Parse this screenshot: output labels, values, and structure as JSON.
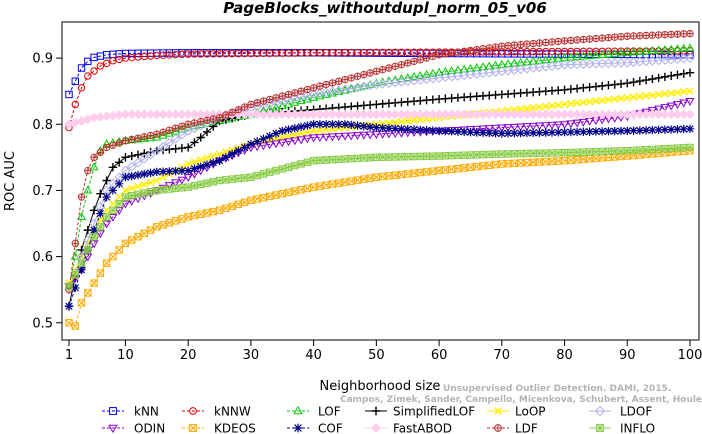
{
  "chart_data": {
    "type": "line",
    "title": "PageBlocks_withoutdupl_norm_05_v06",
    "xlabel": "Neighborhood size",
    "ylabel": "ROC AUC",
    "xlim": [
      1,
      100
    ],
    "ylim": [
      0.48,
      0.95
    ],
    "xticks": [
      1,
      10,
      20,
      30,
      40,
      50,
      60,
      70,
      80,
      90,
      100
    ],
    "yticks": [
      0.5,
      0.6,
      0.7,
      0.8,
      0.9
    ],
    "grid": false,
    "legend_position": "bottom",
    "series": [
      {
        "name": "kNN",
        "color": "#0000ee",
        "marker": "square",
        "dashed": true,
        "points": [
          [
            1,
            0.845
          ],
          [
            2,
            0.865
          ],
          [
            3,
            0.885
          ],
          [
            4,
            0.895
          ],
          [
            5,
            0.901
          ],
          [
            7,
            0.905
          ],
          [
            10,
            0.907
          ],
          [
            20,
            0.908
          ],
          [
            40,
            0.908
          ],
          [
            60,
            0.907
          ],
          [
            80,
            0.906
          ],
          [
            100,
            0.905
          ]
        ]
      },
      {
        "name": "kNNW",
        "color": "#dd0000",
        "marker": "circle",
        "dashed": true,
        "points": [
          [
            1,
            0.795
          ],
          [
            2,
            0.83
          ],
          [
            3,
            0.855
          ],
          [
            4,
            0.873
          ],
          [
            6,
            0.888
          ],
          [
            8,
            0.896
          ],
          [
            10,
            0.9
          ],
          [
            15,
            0.904
          ],
          [
            20,
            0.906
          ],
          [
            40,
            0.908
          ],
          [
            60,
            0.909
          ],
          [
            80,
            0.91
          ],
          [
            100,
            0.911
          ]
        ]
      },
      {
        "name": "LOF",
        "color": "#00cc00",
        "marker": "triangle",
        "dashed": true,
        "points": [
          [
            1,
            0.555
          ],
          [
            2,
            0.6
          ],
          [
            3,
            0.66
          ],
          [
            4,
            0.7
          ],
          [
            5,
            0.735
          ],
          [
            6,
            0.76
          ],
          [
            7,
            0.77
          ],
          [
            10,
            0.775
          ],
          [
            15,
            0.78
          ],
          [
            20,
            0.795
          ],
          [
            25,
            0.805
          ],
          [
            30,
            0.815
          ],
          [
            40,
            0.84
          ],
          [
            50,
            0.862
          ],
          [
            60,
            0.878
          ],
          [
            70,
            0.89
          ],
          [
            80,
            0.9
          ],
          [
            90,
            0.908
          ],
          [
            100,
            0.915
          ]
        ]
      },
      {
        "name": "SimplifiedLOF",
        "color": "#000000",
        "marker": "plus",
        "dashed": false,
        "points": [
          [
            1,
            0.525
          ],
          [
            2,
            0.57
          ],
          [
            3,
            0.61
          ],
          [
            4,
            0.64
          ],
          [
            5,
            0.67
          ],
          [
            6,
            0.695
          ],
          [
            7,
            0.715
          ],
          [
            8,
            0.735
          ],
          [
            10,
            0.75
          ],
          [
            15,
            0.76
          ],
          [
            20,
            0.765
          ],
          [
            22,
            0.78
          ],
          [
            25,
            0.805
          ],
          [
            30,
            0.815
          ],
          [
            40,
            0.822
          ],
          [
            50,
            0.83
          ],
          [
            60,
            0.838
          ],
          [
            70,
            0.845
          ],
          [
            80,
            0.852
          ],
          [
            90,
            0.862
          ],
          [
            100,
            0.878
          ]
        ]
      },
      {
        "name": "LoOP",
        "color": "#ffee00",
        "marker": "x",
        "dashed": false,
        "points": [
          [
            1,
            0.56
          ],
          [
            3,
            0.6
          ],
          [
            5,
            0.64
          ],
          [
            7,
            0.67
          ],
          [
            10,
            0.7
          ],
          [
            15,
            0.715
          ],
          [
            20,
            0.74
          ],
          [
            25,
            0.755
          ],
          [
            30,
            0.77
          ],
          [
            40,
            0.79
          ],
          [
            50,
            0.8
          ],
          [
            60,
            0.81
          ],
          [
            70,
            0.82
          ],
          [
            80,
            0.83
          ],
          [
            90,
            0.84
          ],
          [
            100,
            0.85
          ]
        ]
      },
      {
        "name": "LDOF",
        "color": "#b0b0ee",
        "marker": "diamond",
        "dashed": false,
        "points": [
          [
            1,
            0.55
          ],
          [
            3,
            0.6
          ],
          [
            5,
            0.65
          ],
          [
            7,
            0.7
          ],
          [
            10,
            0.73
          ],
          [
            15,
            0.76
          ],
          [
            20,
            0.79
          ],
          [
            25,
            0.81
          ],
          [
            30,
            0.825
          ],
          [
            40,
            0.845
          ],
          [
            50,
            0.86
          ],
          [
            60,
            0.87
          ],
          [
            70,
            0.88
          ],
          [
            80,
            0.89
          ],
          [
            90,
            0.893
          ],
          [
            100,
            0.9
          ]
        ]
      },
      {
        "name": "ODIN",
        "color": "#8800cc",
        "marker": "triangle-down",
        "dashed": true,
        "points": [
          [
            1,
            0.555
          ],
          [
            3,
            0.58
          ],
          [
            5,
            0.62
          ],
          [
            7,
            0.65
          ],
          [
            10,
            0.68
          ],
          [
            15,
            0.7
          ],
          [
            20,
            0.72
          ],
          [
            25,
            0.745
          ],
          [
            30,
            0.765
          ],
          [
            40,
            0.78
          ],
          [
            50,
            0.785
          ],
          [
            60,
            0.79
          ],
          [
            70,
            0.795
          ],
          [
            80,
            0.8
          ],
          [
            90,
            0.812
          ],
          [
            100,
            0.835
          ]
        ]
      },
      {
        "name": "KDEOS",
        "color": "#ffaa00",
        "marker": "box-x",
        "dashed": true,
        "points": [
          [
            1,
            0.5
          ],
          [
            2,
            0.495
          ],
          [
            3,
            0.53
          ],
          [
            5,
            0.56
          ],
          [
            7,
            0.59
          ],
          [
            10,
            0.62
          ],
          [
            15,
            0.645
          ],
          [
            20,
            0.66
          ],
          [
            25,
            0.67
          ],
          [
            30,
            0.685
          ],
          [
            40,
            0.705
          ],
          [
            50,
            0.72
          ],
          [
            60,
            0.73
          ],
          [
            70,
            0.74
          ],
          [
            80,
            0.745
          ],
          [
            90,
            0.752
          ],
          [
            100,
            0.76
          ]
        ]
      },
      {
        "name": "COF",
        "color": "#000088",
        "marker": "star",
        "dashed": true,
        "points": [
          [
            1,
            0.525
          ],
          [
            3,
            0.58
          ],
          [
            5,
            0.64
          ],
          [
            7,
            0.69
          ],
          [
            10,
            0.72
          ],
          [
            15,
            0.728
          ],
          [
            20,
            0.73
          ],
          [
            25,
            0.745
          ],
          [
            30,
            0.77
          ],
          [
            35,
            0.79
          ],
          [
            40,
            0.8
          ],
          [
            45,
            0.8
          ],
          [
            50,
            0.795
          ],
          [
            60,
            0.79
          ],
          [
            70,
            0.786
          ],
          [
            80,
            0.788
          ],
          [
            90,
            0.79
          ],
          [
            100,
            0.793
          ]
        ]
      },
      {
        "name": "FastABOD",
        "color": "#ffccee",
        "marker": "diamond-filled",
        "dashed": false,
        "points": [
          [
            1,
            0.8
          ],
          [
            3,
            0.805
          ],
          [
            5,
            0.81
          ],
          [
            10,
            0.815
          ],
          [
            20,
            0.815
          ],
          [
            30,
            0.815
          ],
          [
            50,
            0.815
          ],
          [
            70,
            0.815
          ],
          [
            100,
            0.815
          ]
        ]
      },
      {
        "name": "LDF",
        "color": "#bb3333",
        "marker": "circle-plus",
        "dashed": true,
        "points": [
          [
            1,
            0.55
          ],
          [
            2,
            0.62
          ],
          [
            3,
            0.69
          ],
          [
            4,
            0.73
          ],
          [
            5,
            0.75
          ],
          [
            7,
            0.765
          ],
          [
            10,
            0.775
          ],
          [
            15,
            0.785
          ],
          [
            20,
            0.8
          ],
          [
            25,
            0.81
          ],
          [
            30,
            0.83
          ],
          [
            40,
            0.855
          ],
          [
            50,
            0.88
          ],
          [
            60,
            0.905
          ],
          [
            70,
            0.918
          ],
          [
            80,
            0.926
          ],
          [
            90,
            0.933
          ],
          [
            100,
            0.937
          ]
        ]
      },
      {
        "name": "INFLO",
        "color": "#88cc44",
        "marker": "box-star",
        "dashed": false,
        "points": [
          [
            1,
            0.555
          ],
          [
            3,
            0.59
          ],
          [
            5,
            0.63
          ],
          [
            7,
            0.66
          ],
          [
            10,
            0.69
          ],
          [
            15,
            0.7
          ],
          [
            20,
            0.705
          ],
          [
            25,
            0.715
          ],
          [
            30,
            0.72
          ],
          [
            40,
            0.745
          ],
          [
            50,
            0.75
          ],
          [
            60,
            0.752
          ],
          [
            70,
            0.755
          ],
          [
            80,
            0.757
          ],
          [
            90,
            0.76
          ],
          [
            100,
            0.765
          ]
        ]
      }
    ]
  },
  "watermark": {
    "line1": "Unsupervised Outlier Detection. DAMI, 2015.",
    "line2": "Campos, Zimek, Sander, Campello, Micenkova, Schubert, Assent, Houle"
  }
}
